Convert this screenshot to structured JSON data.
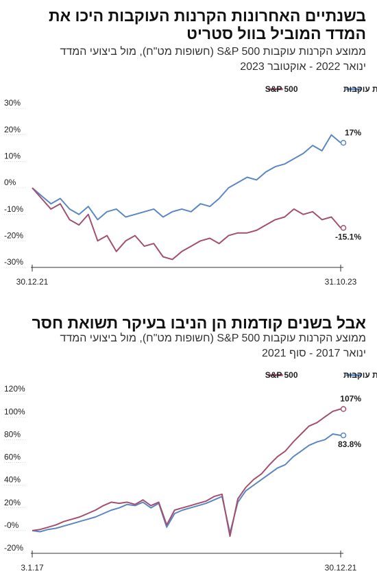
{
  "chart_data": [
    {
      "type": "line",
      "title": "בשנתיים האחרונות הקרנות העוקבות היכו את המדד המוביל בוול סטריט",
      "subtitle": "ממוצע הקרנות עוקבות S&P 500 (חשופות מט\"ח), מול ביצועי המדד",
      "period": "ינואר 2022 - אוקטובר 2023",
      "categories": [
        "30.12.21",
        null,
        null,
        null,
        null,
        null,
        null,
        null,
        null,
        null,
        null,
        null,
        null,
        null,
        null,
        null,
        null,
        null,
        null,
        null,
        null,
        null,
        null,
        null,
        null,
        null,
        null,
        null,
        null,
        null,
        null,
        null,
        null,
        "31.10.23"
      ],
      "series": [
        {
          "name": "קרנות עוקבות",
          "color": "#5b87c5",
          "values": [
            0,
            -3,
            -6,
            -4,
            -8,
            -10,
            -7,
            -12,
            -9,
            -8,
            -11,
            -10,
            -9,
            -8,
            -11,
            -9,
            -8,
            -9,
            -6,
            -7,
            -4,
            0,
            2,
            4,
            3,
            6,
            8,
            9,
            11,
            13,
            16,
            14,
            20,
            17
          ],
          "value_labels": [
            null,
            null,
            null,
            null,
            null,
            null,
            null,
            null,
            null,
            null,
            null,
            null,
            null,
            null,
            null,
            null,
            null,
            null,
            null,
            null,
            null,
            null,
            null,
            null,
            null,
            null,
            null,
            null,
            null,
            null,
            null,
            null,
            null,
            "17%"
          ]
        },
        {
          "name": "S&P 500",
          "color": "#a3506e",
          "values": [
            0,
            -4,
            -8,
            -6,
            -12,
            -14,
            -10,
            -20,
            -18,
            -24,
            -20,
            -18,
            -22,
            -21,
            -26,
            -27,
            -24,
            -22,
            -20,
            -19,
            -21,
            -18,
            -17,
            -17,
            -16,
            -14,
            -12,
            -11,
            -8,
            -10,
            -9,
            -12,
            -11,
            -15.1
          ],
          "value_labels": [
            null,
            null,
            null,
            null,
            null,
            null,
            null,
            null,
            null,
            null,
            null,
            null,
            null,
            null,
            null,
            null,
            null,
            null,
            null,
            null,
            null,
            null,
            null,
            null,
            null,
            null,
            null,
            null,
            null,
            null,
            null,
            null,
            null,
            "-15.1%"
          ]
        }
      ],
      "ylim": [
        -30,
        30
      ],
      "yticks": [
        {
          "value": 30,
          "label": "30%"
        },
        {
          "value": 20,
          "label": "20%"
        },
        {
          "value": 10,
          "label": "10%"
        },
        {
          "value": 0,
          "label": "0%"
        },
        {
          "value": -10,
          "label": "-10%"
        },
        {
          "value": -20,
          "label": "-20%"
        },
        {
          "value": -30,
          "label": "-30%"
        }
      ],
      "grid": false
    },
    {
      "type": "line",
      "title": "אבל בשנים קודמות הן הניבו בעיקר תשואת חסר",
      "subtitle": "ממוצע הקרנות עוקבות S&P 500 (חשופות מט\"ח), מול ביצועי המדד",
      "period": "ינואר 2017 - סוף 2021",
      "categories": [
        "3.1.17",
        null,
        null,
        null,
        null,
        null,
        null,
        null,
        null,
        null,
        null,
        null,
        null,
        null,
        null,
        null,
        null,
        null,
        null,
        null,
        null,
        null,
        null,
        null,
        null,
        null,
        null,
        null,
        null,
        null,
        null,
        null,
        null,
        null,
        null,
        null,
        null,
        null,
        null,
        "30.12.21"
      ],
      "series": [
        {
          "name": "קרנות עוקבות",
          "color": "#5b87c5",
          "values": [
            0,
            -1,
            1,
            2,
            4,
            6,
            8,
            10,
            12,
            15,
            18,
            20,
            23,
            22,
            25,
            20,
            24,
            3,
            15,
            18,
            20,
            22,
            24,
            27,
            30,
            -2,
            25,
            35,
            40,
            45,
            50,
            55,
            58,
            65,
            70,
            75,
            78,
            80,
            85,
            83.8
          ],
          "value_labels": [
            null,
            null,
            null,
            null,
            null,
            null,
            null,
            null,
            null,
            null,
            null,
            null,
            null,
            null,
            null,
            null,
            null,
            null,
            null,
            null,
            null,
            null,
            null,
            null,
            null,
            null,
            null,
            null,
            null,
            null,
            null,
            null,
            null,
            null,
            null,
            null,
            null,
            null,
            null,
            "83.8%"
          ]
        },
        {
          "name": "S&P 500",
          "color": "#a3506e",
          "values": [
            0,
            1,
            3,
            5,
            8,
            10,
            12,
            15,
            18,
            22,
            25,
            24,
            25,
            23,
            27,
            22,
            25,
            5,
            18,
            20,
            22,
            24,
            26,
            30,
            32,
            -5,
            28,
            38,
            45,
            50,
            58,
            65,
            70,
            78,
            85,
            92,
            95,
            100,
            105,
            107
          ],
          "value_labels": [
            null,
            null,
            null,
            null,
            null,
            null,
            null,
            null,
            null,
            null,
            null,
            null,
            null,
            null,
            null,
            null,
            null,
            null,
            null,
            null,
            null,
            null,
            null,
            null,
            null,
            null,
            null,
            null,
            null,
            null,
            null,
            null,
            null,
            null,
            null,
            null,
            null,
            null,
            null,
            "107%"
          ]
        }
      ],
      "ylim": [
        -20,
        120
      ],
      "yticks": [
        {
          "value": 120,
          "label": "120%"
        },
        {
          "value": 100,
          "label": "100%"
        },
        {
          "value": 80,
          "label": "80%"
        },
        {
          "value": 60,
          "label": "60%"
        },
        {
          "value": 40,
          "label": "40%"
        },
        {
          "value": 20,
          "label": "20%"
        },
        {
          "value": 0,
          "label": "-0%"
        },
        {
          "value": -20,
          "label": "-20%"
        }
      ],
      "grid": false
    }
  ]
}
